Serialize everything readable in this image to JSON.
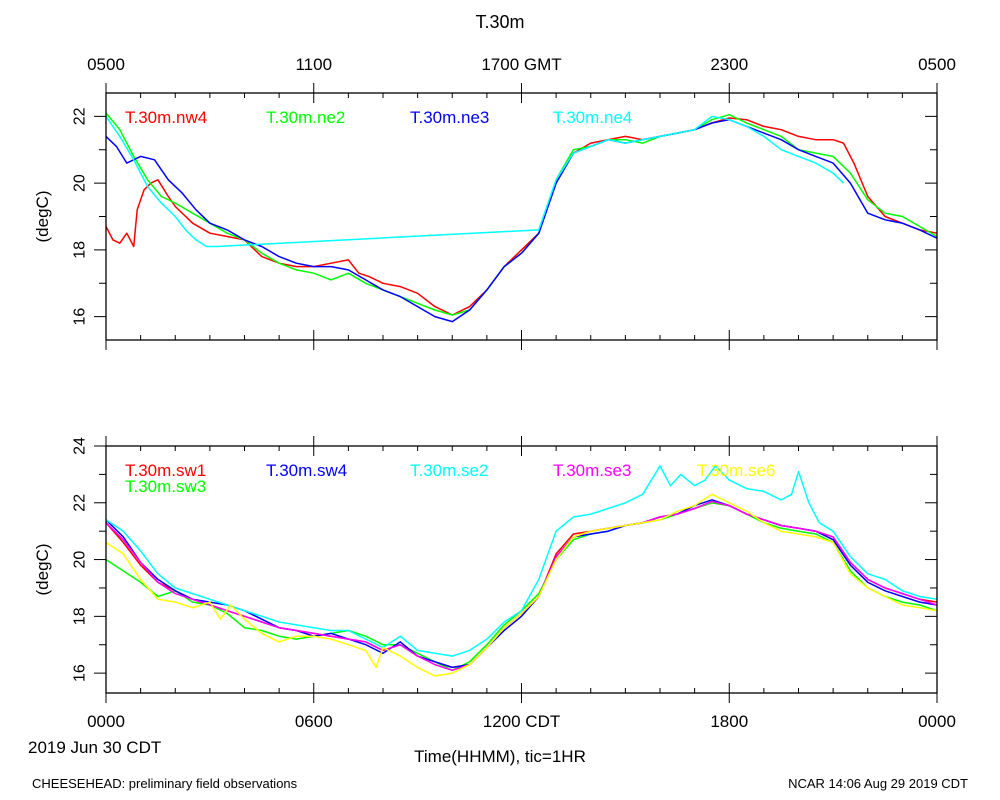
{
  "title": "T.30m",
  "x_title": "Time(HHMM), tic=1HR",
  "date_label": "2019 Jun 30 CDT",
  "footer_left": "CHEESEHEAD: preliminary field observations",
  "footer_right": "NCAR 14:06 Aug 29 2019 CDT",
  "top_axis_labels": [
    "0500",
    "1100",
    "1700 GMT",
    "2300",
    "0500"
  ],
  "bottom_axis_labels": [
    "0000",
    "0600",
    "1200 CDT",
    "1800",
    "0000"
  ],
  "chart_data": [
    {
      "type": "line",
      "panel": "top",
      "ylabel": "(degC)",
      "xlim": [
        0,
        24
      ],
      "ylim": [
        15.3,
        22.7
      ],
      "yticks": [
        16,
        18,
        20,
        22
      ],
      "series": [
        {
          "name": "T.30m.nw4",
          "color": "#ff0000",
          "x": [
            0,
            0.2,
            0.4,
            0.6,
            0.8,
            0.9,
            1.1,
            1.3,
            1.5,
            1.8,
            2.0,
            2.5,
            3.0,
            3.5,
            4.0,
            4.5,
            5.0,
            5.5,
            6.0,
            6.5,
            7.0,
            7.3,
            7.6,
            8.0,
            8.5,
            9.0,
            9.5,
            10.0,
            10.5,
            11.0,
            11.5,
            12.0,
            12.5,
            13.0,
            13.5,
            14.0,
            14.5,
            15.0,
            15.5,
            16.0,
            16.5,
            17.0,
            17.5,
            18.0,
            18.5,
            19.0,
            19.5,
            20.0,
            20.5,
            21.0,
            21.3,
            21.6,
            22.0,
            22.5,
            23.0,
            23.5,
            24.0
          ],
          "y": [
            18.7,
            18.3,
            18.2,
            18.5,
            18.1,
            19.2,
            19.8,
            20.0,
            20.1,
            19.6,
            19.3,
            18.8,
            18.5,
            18.4,
            18.3,
            17.8,
            17.6,
            17.5,
            17.5,
            17.6,
            17.7,
            17.3,
            17.2,
            17.0,
            16.9,
            16.7,
            16.3,
            16.05,
            16.3,
            16.8,
            17.5,
            18.0,
            18.5,
            20.0,
            20.9,
            21.2,
            21.3,
            21.4,
            21.3,
            21.4,
            21.5,
            21.6,
            21.8,
            21.95,
            21.9,
            21.7,
            21.6,
            21.4,
            21.3,
            21.3,
            21.2,
            20.6,
            19.6,
            19.0,
            18.8,
            18.6,
            18.5
          ]
        },
        {
          "name": "T.30m.ne2",
          "color": "#00ff00",
          "x": [
            0,
            0.4,
            0.8,
            1.2,
            1.6,
            2.0,
            2.5,
            3.0,
            3.5,
            4.0,
            4.5,
            5.0,
            5.5,
            6.0,
            6.5,
            7.0,
            7.5,
            8.0,
            8.5,
            9.0,
            9.5,
            10.0,
            10.5,
            11.0,
            11.5,
            12.0,
            12.5,
            13.0,
            13.5,
            14.0,
            14.5,
            15.0,
            15.5,
            16.0,
            16.5,
            17.0,
            17.5,
            18.0,
            18.5,
            19.0,
            19.5,
            20.0,
            20.5,
            21.0,
            21.5,
            22.0,
            22.5,
            23.0,
            23.5,
            24.0
          ],
          "y": [
            22.1,
            21.6,
            20.8,
            20.1,
            19.6,
            19.4,
            19.1,
            18.8,
            18.5,
            18.3,
            17.9,
            17.6,
            17.4,
            17.3,
            17.1,
            17.3,
            17.0,
            16.8,
            16.6,
            16.4,
            16.2,
            16.05,
            16.2,
            16.8,
            17.5,
            17.9,
            18.5,
            20.1,
            21.0,
            21.1,
            21.3,
            21.3,
            21.2,
            21.4,
            21.5,
            21.6,
            21.9,
            22.05,
            21.8,
            21.6,
            21.4,
            21.0,
            20.9,
            20.8,
            20.3,
            19.5,
            19.1,
            19.0,
            18.7,
            18.4
          ]
        },
        {
          "name": "T.30m.ne3",
          "color": "#0000ff",
          "x": [
            0,
            0.3,
            0.6,
            1.0,
            1.4,
            1.8,
            2.2,
            2.6,
            3.0,
            3.5,
            4.0,
            4.5,
            5.0,
            5.5,
            6.0,
            6.5,
            7.0,
            7.5,
            8.0,
            8.5,
            9.0,
            9.5,
            10.0,
            10.5,
            11.0,
            11.5,
            12.0,
            12.5,
            13.0,
            13.5,
            14.0,
            14.5,
            15.0,
            15.5,
            16.0,
            16.5,
            17.0,
            17.5,
            18.0,
            18.5,
            19.0,
            19.5,
            20.0,
            20.5,
            21.0,
            21.5,
            22.0,
            22.5,
            23.0,
            23.5,
            24.0
          ],
          "y": [
            21.4,
            21.1,
            20.6,
            20.8,
            20.7,
            20.1,
            19.7,
            19.2,
            18.8,
            18.6,
            18.3,
            18.1,
            17.8,
            17.6,
            17.5,
            17.5,
            17.4,
            17.1,
            16.8,
            16.6,
            16.3,
            16.0,
            15.85,
            16.2,
            16.8,
            17.5,
            17.9,
            18.5,
            20.0,
            20.9,
            21.1,
            21.3,
            21.2,
            21.3,
            21.4,
            21.5,
            21.6,
            21.8,
            21.9,
            21.7,
            21.5,
            21.3,
            21.0,
            20.8,
            20.6,
            20.0,
            19.1,
            18.9,
            18.8,
            18.6,
            18.35
          ]
        },
        {
          "name": "T.30m.ne4",
          "color": "#00ffff",
          "x": [
            0,
            0.4,
            0.8,
            1.2,
            1.6,
            2.0,
            2.3,
            2.6,
            2.9,
            3.2,
            12.5,
            13.0,
            13.5,
            14.0,
            14.5,
            15.0,
            15.5,
            16.0,
            16.5,
            17.0,
            17.5,
            18.0,
            18.5,
            19.0,
            19.5,
            20.0,
            20.5,
            21.0,
            21.3
          ],
          "y": [
            22.0,
            21.4,
            20.7,
            19.9,
            19.4,
            19.0,
            18.6,
            18.3,
            18.1,
            18.1,
            18.6,
            20.1,
            20.9,
            21.1,
            21.3,
            21.2,
            21.3,
            21.4,
            21.5,
            21.6,
            22.0,
            21.9,
            21.7,
            21.4,
            21.0,
            20.8,
            20.6,
            20.3,
            20.0
          ]
        }
      ]
    },
    {
      "type": "line",
      "panel": "bottom",
      "ylabel": "(degC)",
      "xlim": [
        0,
        24
      ],
      "ylim": [
        15.3,
        24.0
      ],
      "yticks": [
        16,
        18,
        20,
        22,
        24
      ],
      "series": [
        {
          "name": "T.30m.sw1",
          "color": "#ff0000",
          "x": [
            0,
            0.5,
            1.0,
            1.5,
            2.0,
            2.5,
            3.0,
            3.5,
            4.0,
            4.5,
            5.0,
            5.5,
            6.0,
            6.5,
            7.0,
            7.5,
            8.0,
            8.5,
            9.0,
            9.5,
            10.0,
            10.5,
            11.0,
            11.5,
            12.0,
            12.5,
            13.0,
            13.5,
            14.0,
            14.5,
            15.0,
            15.5,
            16.0,
            16.5,
            17.0,
            17.5,
            18.0,
            18.5,
            19.0,
            19.5,
            20.0,
            20.5,
            21.0,
            21.5,
            22.0,
            22.5,
            23.0,
            23.5,
            24.0
          ],
          "y": [
            21.3,
            20.6,
            19.8,
            19.2,
            18.9,
            18.6,
            18.4,
            18.2,
            18.0,
            17.8,
            17.6,
            17.5,
            17.4,
            17.3,
            17.2,
            17.1,
            16.8,
            17.0,
            16.6,
            16.4,
            16.2,
            16.3,
            16.9,
            17.6,
            18.1,
            18.7,
            20.2,
            20.9,
            21.0,
            21.1,
            21.2,
            21.3,
            21.5,
            21.6,
            21.8,
            22.0,
            21.9,
            21.6,
            21.4,
            21.2,
            21.1,
            21.0,
            20.8,
            19.9,
            19.3,
            19.0,
            18.8,
            18.6,
            18.5
          ]
        },
        {
          "name": "T.30m.sw3",
          "color": "#00ff00",
          "x": [
            0,
            0.5,
            1.0,
            1.5,
            2.0,
            2.5,
            3.0,
            3.5,
            4.0,
            4.5,
            5.0,
            5.5,
            6.0,
            6.5,
            7.0,
            7.5,
            8.0,
            8.5,
            9.0,
            9.5,
            10.0,
            10.5,
            11.0,
            11.5,
            12.0,
            12.5,
            13.0,
            13.5,
            14.0,
            14.5,
            15.0,
            15.5,
            16.0,
            16.5,
            17.0,
            17.5,
            18.0,
            18.5,
            19.0,
            19.5,
            20.0,
            20.5,
            21.0,
            21.5,
            22.0,
            22.5,
            23.0,
            23.5,
            24.0
          ],
          "y": [
            20.0,
            19.6,
            19.2,
            18.7,
            18.9,
            18.5,
            18.4,
            18.1,
            17.6,
            17.5,
            17.3,
            17.2,
            17.3,
            17.4,
            17.5,
            17.3,
            17.0,
            17.0,
            16.7,
            16.4,
            16.1,
            16.4,
            17.0,
            17.7,
            18.2,
            18.8,
            20.0,
            20.7,
            20.9,
            21.0,
            21.2,
            21.3,
            21.4,
            21.6,
            21.8,
            22.0,
            21.9,
            21.6,
            21.3,
            21.1,
            21.0,
            20.9,
            20.6,
            19.6,
            19.0,
            18.7,
            18.5,
            18.4,
            18.2
          ]
        },
        {
          "name": "T.30m.sw4",
          "color": "#0000ff",
          "x": [
            0,
            0.5,
            1.0,
            1.5,
            2.0,
            2.5,
            3.0,
            3.5,
            4.0,
            4.5,
            5.0,
            5.5,
            6.0,
            6.5,
            7.0,
            7.5,
            8.0,
            8.5,
            9.0,
            9.5,
            10.0,
            10.5,
            11.0,
            11.5,
            12.0,
            12.5,
            13.0,
            13.5,
            14.0,
            14.5,
            15.0,
            15.5,
            16.0,
            16.5,
            17.0,
            17.5,
            18.0,
            18.5,
            19.0,
            19.5,
            20.0,
            20.5,
            21.0,
            21.5,
            22.0,
            22.5,
            23.0,
            23.5,
            24.0
          ],
          "y": [
            21.4,
            20.8,
            19.9,
            19.3,
            18.9,
            18.6,
            18.5,
            18.4,
            18.2,
            17.9,
            17.6,
            17.5,
            17.3,
            17.4,
            17.2,
            17.0,
            16.7,
            17.1,
            16.6,
            16.4,
            16.2,
            16.3,
            16.9,
            17.5,
            18.0,
            18.7,
            20.1,
            20.8,
            20.9,
            21.0,
            21.2,
            21.3,
            21.5,
            21.6,
            21.9,
            22.1,
            21.9,
            21.6,
            21.4,
            21.2,
            21.1,
            21.0,
            20.7,
            19.8,
            19.2,
            18.9,
            18.7,
            18.5,
            18.4
          ]
        },
        {
          "name": "T.30m.se2",
          "color": "#00ffff",
          "x": [
            0,
            0.5,
            1.0,
            1.5,
            2.0,
            2.5,
            3.0,
            3.5,
            4.0,
            4.5,
            5.0,
            5.5,
            6.0,
            6.5,
            7.0,
            7.5,
            8.0,
            8.5,
            9.0,
            9.5,
            10.0,
            10.5,
            11.0,
            11.5,
            12.0,
            12.5,
            13.0,
            13.5,
            14.0,
            14.5,
            15.0,
            15.5,
            16.0,
            16.3,
            16.6,
            17.0,
            17.3,
            17.6,
            18.0,
            18.5,
            19.0,
            19.5,
            19.8,
            20.0,
            20.3,
            20.6,
            21.0,
            21.5,
            22.0,
            22.5,
            23.0,
            23.5,
            24.0
          ],
          "y": [
            21.4,
            21.0,
            20.3,
            19.5,
            19.0,
            18.8,
            18.6,
            18.4,
            18.2,
            18.0,
            17.8,
            17.7,
            17.6,
            17.5,
            17.5,
            17.2,
            16.9,
            17.3,
            16.8,
            16.7,
            16.6,
            16.8,
            17.2,
            17.8,
            18.2,
            19.3,
            21.0,
            21.5,
            21.6,
            21.8,
            22.0,
            22.3,
            23.3,
            22.6,
            23.0,
            22.6,
            22.8,
            23.3,
            22.8,
            22.5,
            22.4,
            22.1,
            22.3,
            23.1,
            22.0,
            21.3,
            21.0,
            20.1,
            19.5,
            19.3,
            18.9,
            18.7,
            18.6
          ]
        },
        {
          "name": "T.30m.se3",
          "color": "#ff00ff",
          "x": [
            0,
            0.5,
            1.0,
            1.5,
            2.0,
            2.5,
            3.0,
            3.5,
            4.0,
            4.5,
            5.0,
            5.5,
            6.0,
            6.5,
            7.0,
            7.5,
            8.0,
            8.5,
            9.0,
            9.5,
            10.0,
            10.5,
            11.0,
            11.5,
            12.0,
            12.5,
            13.0,
            13.5,
            14.0,
            14.5,
            15.0,
            15.5,
            16.0,
            16.5,
            17.0,
            17.5,
            18.0,
            18.5,
            19.0,
            19.5,
            20.0,
            20.5,
            21.0,
            21.5,
            22.0,
            22.5,
            23.0,
            23.5,
            24.0
          ],
          "y": [
            21.3,
            20.7,
            19.9,
            19.2,
            18.8,
            18.6,
            18.4,
            18.2,
            18.0,
            17.8,
            17.6,
            17.5,
            17.4,
            17.3,
            17.2,
            17.1,
            16.8,
            17.0,
            16.6,
            16.3,
            16.1,
            16.3,
            16.9,
            17.6,
            18.1,
            18.7,
            20.1,
            20.8,
            21.0,
            21.1,
            21.2,
            21.3,
            21.5,
            21.6,
            21.8,
            22.05,
            21.9,
            21.6,
            21.4,
            21.2,
            21.1,
            21.0,
            20.8,
            19.9,
            19.3,
            19.0,
            18.8,
            18.6,
            18.4
          ]
        },
        {
          "name": "T.30m.se6",
          "color": "#ffff00",
          "x": [
            0,
            0.5,
            1.0,
            1.5,
            2.0,
            2.5,
            3.0,
            3.3,
            3.6,
            4.0,
            4.5,
            5.0,
            5.5,
            6.0,
            6.5,
            7.0,
            7.5,
            7.8,
            8.0,
            8.5,
            9.0,
            9.5,
            10.0,
            10.5,
            11.0,
            11.5,
            12.0,
            12.5,
            13.0,
            13.5,
            14.0,
            14.5,
            15.0,
            15.5,
            16.0,
            16.5,
            17.0,
            17.5,
            18.0,
            18.5,
            19.0,
            19.5,
            20.0,
            20.5,
            21.0,
            21.5,
            22.0,
            22.5,
            23.0,
            23.5,
            24.0
          ],
          "y": [
            20.6,
            20.2,
            19.3,
            18.6,
            18.5,
            18.3,
            18.5,
            17.9,
            18.4,
            17.9,
            17.4,
            17.1,
            17.3,
            17.3,
            17.2,
            17.0,
            16.8,
            16.2,
            16.9,
            16.6,
            16.2,
            15.9,
            16.0,
            16.3,
            16.9,
            17.6,
            18.1,
            18.7,
            20.0,
            20.8,
            21.0,
            21.1,
            21.2,
            21.3,
            21.4,
            21.7,
            21.9,
            22.3,
            22.0,
            21.7,
            21.3,
            21.0,
            20.9,
            20.8,
            20.6,
            19.5,
            19.0,
            18.7,
            18.4,
            18.3,
            18.2
          ]
        }
      ]
    }
  ]
}
